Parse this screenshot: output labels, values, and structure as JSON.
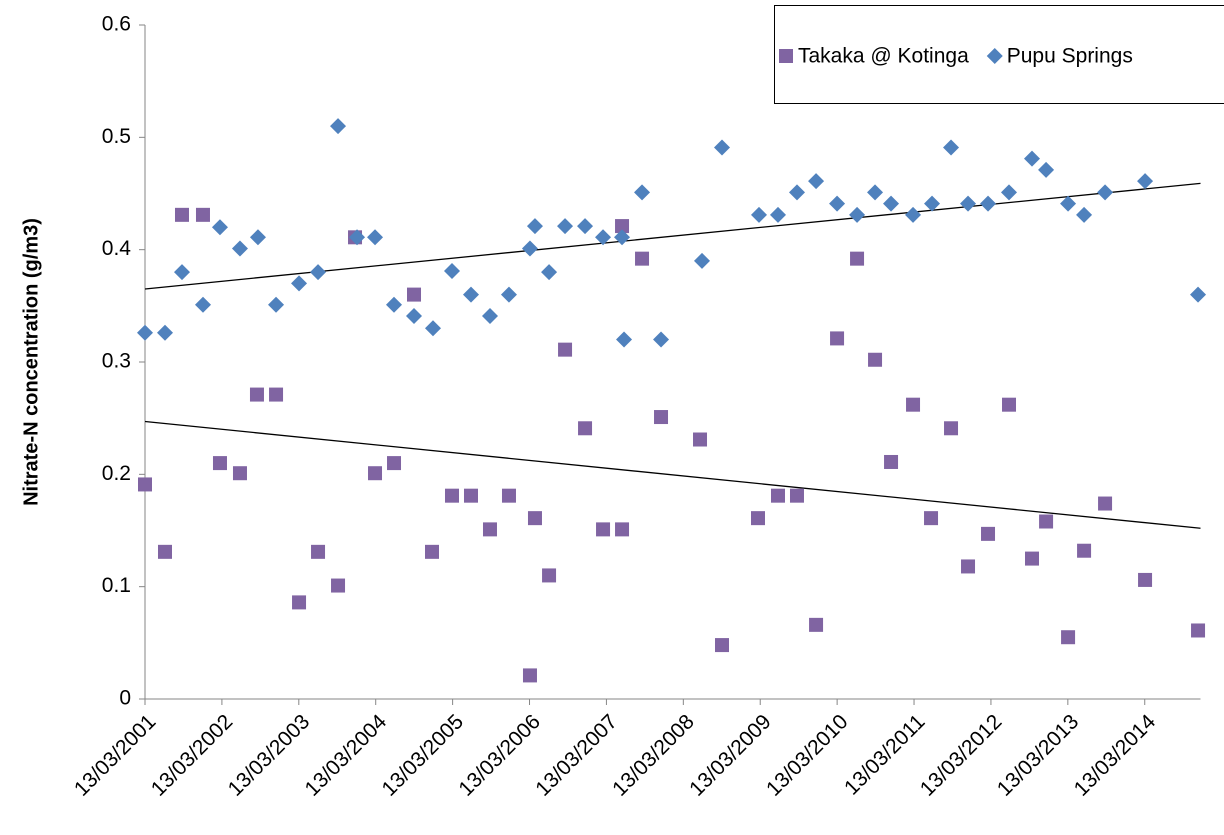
{
  "chart_data": {
    "type": "scatter",
    "ylabel": "Nitrate-N concentration (g/m3)",
    "xlim": [
      2001.195,
      2014.92
    ],
    "xticks": [
      {
        "value": 2001.195,
        "label": "13/03/2001"
      },
      {
        "value": 2002.195,
        "label": "13/03/2002"
      },
      {
        "value": 2003.195,
        "label": "13/03/2003"
      },
      {
        "value": 2004.195,
        "label": "13/03/2004"
      },
      {
        "value": 2005.195,
        "label": "13/03/2005"
      },
      {
        "value": 2006.195,
        "label": "13/03/2006"
      },
      {
        "value": 2007.195,
        "label": "13/03/2007"
      },
      {
        "value": 2008.195,
        "label": "13/03/2008"
      },
      {
        "value": 2009.195,
        "label": "13/03/2009"
      },
      {
        "value": 2010.195,
        "label": "13/03/2010"
      },
      {
        "value": 2011.195,
        "label": "13/03/2011"
      },
      {
        "value": 2012.195,
        "label": "13/03/2012"
      },
      {
        "value": 2013.195,
        "label": "13/03/2013"
      },
      {
        "value": 2014.195,
        "label": "13/03/2014"
      }
    ],
    "ylim": [
      0,
      0.6
    ],
    "yticks": [
      0,
      0.1,
      0.2,
      0.3,
      0.4,
      0.5,
      0.6
    ],
    "grid": false,
    "legend": "top-right",
    "series": [
      {
        "name": "Takaka @ Kotinga",
        "color": "#8064a2",
        "marker": "square",
        "x": [
          2001.195,
          2001.455,
          2001.676,
          2001.949,
          2002.17,
          2002.43,
          2002.651,
          2002.899,
          2003.198,
          2003.445,
          2003.705,
          2003.926,
          2004.186,
          2004.433,
          2004.693,
          2004.927,
          2005.187,
          2005.434,
          2005.681,
          2005.928,
          2006.201,
          2006.266,
          2006.449,
          2006.657,
          2006.917,
          2007.151,
          2007.398,
          2007.398,
          2007.658,
          2007.905,
          2008.412,
          2008.698,
          2009.166,
          2009.426,
          2009.673,
          2009.921,
          2010.194,
          2010.454,
          2010.688,
          2010.896,
          2011.182,
          2011.416,
          2011.676,
          2011.897,
          2012.157,
          2012.43,
          2012.729,
          2012.912,
          2013.198,
          2013.406,
          2013.679,
          2014.199,
          2014.888
        ],
        "values": [
          0.191,
          0.131,
          0.431,
          0.431,
          0.21,
          0.201,
          0.271,
          0.271,
          0.086,
          0.131,
          0.101,
          0.411,
          0.201,
          0.21,
          0.36,
          0.131,
          0.181,
          0.181,
          0.151,
          0.181,
          0.021,
          0.161,
          0.11,
          0.311,
          0.241,
          0.151,
          0.151,
          0.421,
          0.392,
          0.251,
          0.231,
          0.048,
          0.161,
          0.181,
          0.181,
          0.066,
          0.321,
          0.392,
          0.302,
          0.211,
          0.262,
          0.161,
          0.241,
          0.118,
          0.147,
          0.262,
          0.125,
          0.158,
          0.055,
          0.132,
          0.174,
          0.106,
          0.061
        ]
      },
      {
        "name": "Pupu Springs",
        "color": "#4f81bd",
        "marker": "diamond",
        "x": [
          2001.195,
          2001.455,
          2001.676,
          2001.949,
          2002.17,
          2002.43,
          2002.664,
          2002.899,
          2003.198,
          2003.445,
          2003.705,
          2003.952,
          2004.186,
          2004.433,
          2004.693,
          2004.94,
          2005.187,
          2005.434,
          2005.681,
          2005.928,
          2006.201,
          2006.266,
          2006.449,
          2006.657,
          2006.917,
          2007.151,
          2007.398,
          2007.424,
          2007.658,
          2007.905,
          2008.438,
          2008.698,
          2009.179,
          2009.426,
          2009.673,
          2009.921,
          2010.194,
          2010.454,
          2010.688,
          2010.896,
          2011.182,
          2011.429,
          2011.676,
          2011.897,
          2012.157,
          2012.43,
          2012.729,
          2012.912,
          2013.198,
          2013.406,
          2013.679,
          2014.199,
          2014.888
        ],
        "values": [
          0.326,
          0.326,
          0.38,
          0.351,
          0.42,
          0.401,
          0.411,
          0.351,
          0.37,
          0.38,
          0.51,
          0.411,
          0.411,
          0.351,
          0.341,
          0.33,
          0.381,
          0.36,
          0.341,
          0.36,
          0.401,
          0.421,
          0.38,
          0.421,
          0.421,
          0.411,
          0.411,
          0.32,
          0.451,
          0.32,
          0.39,
          0.491,
          0.431,
          0.431,
          0.451,
          0.461,
          0.441,
          0.431,
          0.451,
          0.441,
          0.431,
          0.441,
          0.491,
          0.441,
          0.441,
          0.451,
          0.481,
          0.471,
          0.441,
          0.431,
          0.451,
          0.461,
          0.36
        ]
      }
    ],
    "trendlines": [
      {
        "color": "#000000",
        "x": [
          2001.195,
          2014.92
        ],
        "values": [
          0.247,
          0.152
        ]
      },
      {
        "color": "#000000",
        "x": [
          2001.195,
          2014.92
        ],
        "values": [
          0.365,
          0.459
        ]
      }
    ]
  }
}
